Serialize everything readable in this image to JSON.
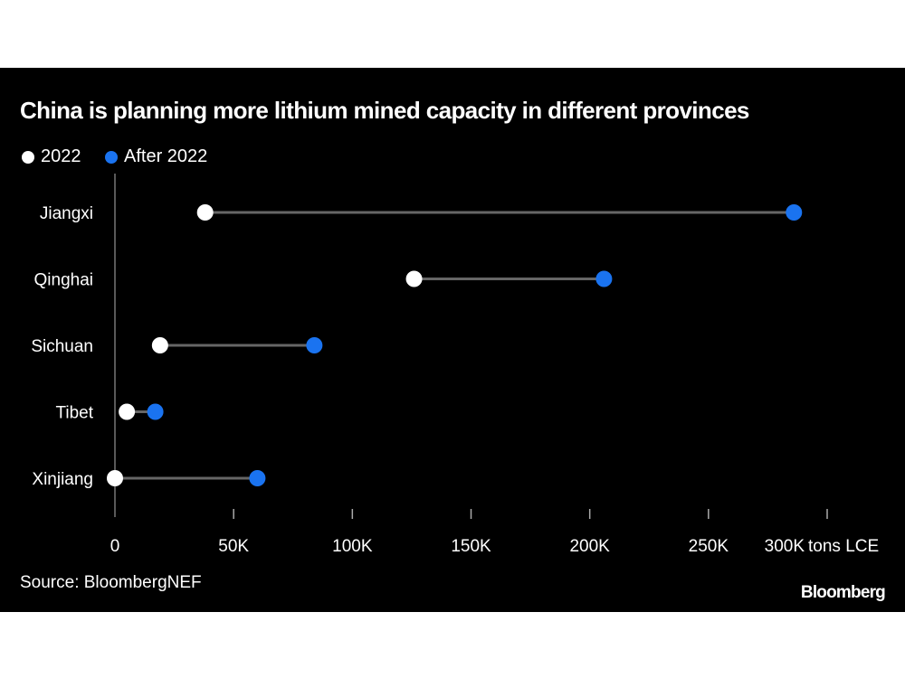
{
  "chart_data": {
    "type": "dumbbell",
    "title": "China is planning more lithium mined capacity in different provinces",
    "legend": [
      {
        "name": "2022",
        "color": "#ffffff"
      },
      {
        "name": "After 2022",
        "color": "#1a73f0"
      }
    ],
    "legend_placement": "top-left",
    "categories": [
      "Jiangxi",
      "Qinghai",
      "Sichuan",
      "Tibet",
      "Xinjiang"
    ],
    "series": [
      {
        "name": "2022",
        "values": [
          38000,
          126000,
          19000,
          5000,
          0
        ]
      },
      {
        "name": "After 2022",
        "values": [
          286000,
          206000,
          84000,
          17000,
          60000
        ]
      }
    ],
    "xlim": [
      0,
      300000
    ],
    "x_ticks": [
      0,
      50000,
      100000,
      150000,
      200000,
      250000,
      300000
    ],
    "x_tick_labels": [
      "0",
      "50K",
      "100K",
      "150K",
      "200K",
      "250K",
      "300K"
    ],
    "xlabel": "tons LCE",
    "grid": false,
    "connector_color": "#666666"
  },
  "source": "Source: BloombergNEF",
  "logo": "Bloomberg"
}
